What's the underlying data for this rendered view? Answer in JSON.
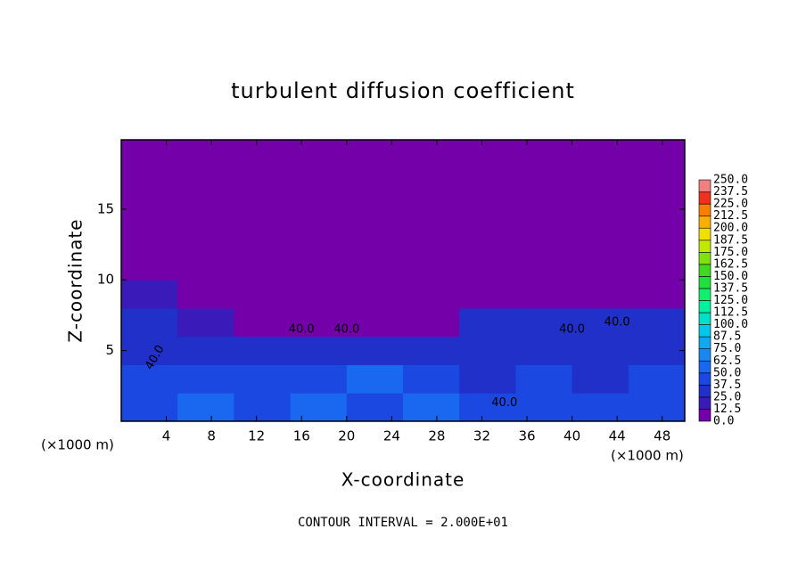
{
  "chart_data": {
    "type": "contour",
    "title": "turbulent diffusion coefficient",
    "x_label": "X-coordinate",
    "y_label": "Z-coordinate",
    "x_unit": "(×1000 m)",
    "footer": "CONTOUR INTERVAL = 2.000E+01",
    "contour_labels": [
      "40.0",
      "40.0",
      "40.0",
      "40.0",
      "40.0",
      "40.0"
    ],
    "xlim": [
      0,
      50
    ],
    "ylim": [
      0,
      19.9
    ],
    "xticks": [
      4,
      8,
      12,
      16,
      20,
      24,
      28,
      32,
      36,
      40,
      44,
      48
    ],
    "yticks": [
      5,
      10,
      15
    ],
    "field": {
      "x_edges": [
        0,
        5,
        10,
        15,
        20,
        25,
        30,
        35,
        40,
        45,
        50
      ],
      "z_edges": [
        0,
        2,
        4,
        6,
        8,
        10,
        12,
        14,
        16,
        18,
        20
      ],
      "values": [
        [
          40,
          50,
          45,
          50,
          40,
          50,
          45,
          40,
          45,
          40
        ],
        [
          40,
          40,
          45,
          45,
          50,
          40,
          35,
          40,
          35,
          40
        ],
        [
          35,
          30,
          30,
          30,
          30,
          25,
          35,
          35,
          35,
          30
        ],
        [
          30,
          15,
          10,
          10,
          5,
          5,
          25,
          30,
          25,
          25
        ],
        [
          15,
          0,
          0,
          0,
          0,
          0,
          0,
          0,
          0,
          5
        ],
        [
          0,
          0,
          0,
          0,
          0,
          0,
          0,
          0,
          0,
          0
        ],
        [
          0,
          0,
          0,
          0,
          0,
          0,
          0,
          0,
          0,
          0
        ],
        [
          0,
          0,
          0,
          0,
          0,
          0,
          0,
          0,
          0,
          0
        ],
        [
          0,
          0,
          0,
          0,
          0,
          0,
          0,
          0,
          0,
          0
        ],
        [
          0,
          0,
          0,
          0,
          0,
          0,
          0,
          0,
          0,
          0
        ]
      ]
    },
    "levels": [
      {
        "value": 0,
        "label": "0.0"
      },
      12.5,
      {
        "value": 25,
        "label": "25.0"
      },
      37.5,
      {
        "value": 50,
        "label": "50.0"
      },
      62.5,
      {
        "value": 75,
        "label": "75.0"
      },
      87.5,
      {
        "value": 100,
        "label": "100.0"
      },
      112.5,
      {
        "value": 125,
        "label": "125.0"
      },
      137.5,
      {
        "value": 150,
        "label": "150.0"
      },
      162.5,
      {
        "value": 175,
        "label": "175.0"
      },
      187.5,
      {
        "value": 200,
        "label": "200.0"
      },
      212.5,
      {
        "value": 225,
        "label": "225.0"
      },
      237.5,
      {
        "value": 250,
        "label": "250.0"
      }
    ],
    "colors": [
      "#7300a8",
      "#3a1ab8",
      "#2030c8",
      "#1a48e0",
      "#1a68f0",
      "#1888f0",
      "#10a8f0",
      "#00c8e8",
      "#00e0c8",
      "#00f0a0",
      "#10f070",
      "#20e040",
      "#40d820",
      "#80e010",
      "#c0e800",
      "#f0e000",
      "#f8b000",
      "#f88000",
      "#f03020",
      "#f08080"
    ]
  }
}
